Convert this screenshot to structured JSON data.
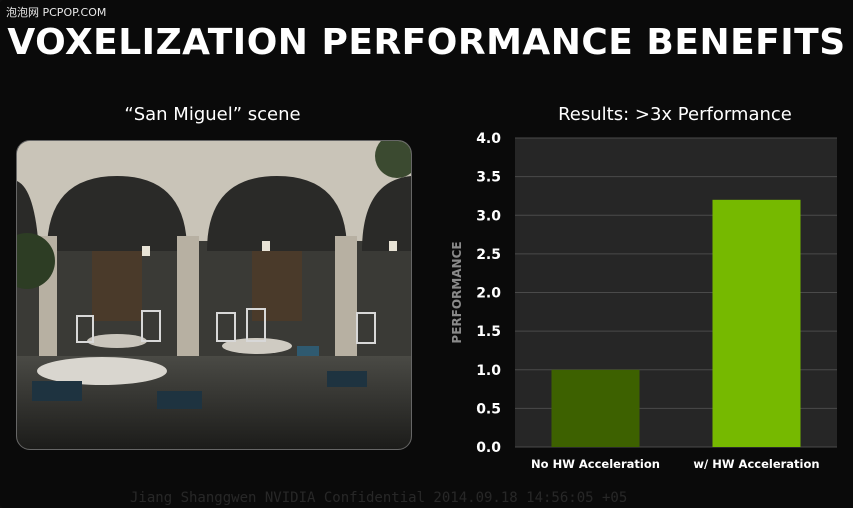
{
  "watermark": "泡泡网 PCPOP.COM",
  "slide_title": "VOXELIZATION PERFORMANCE BENEFITS",
  "left_heading": "“San Miguel” scene",
  "right_heading": "Results: >3x Performance",
  "footer_confidential": "Jiang Shanggwen NVIDIA Confidential 2014.09.18 14:56:05 +05",
  "colors": {
    "bar_no_hw": "#3d6100",
    "bar_hw": "#76b900",
    "plot_bg": "#262626",
    "grid": "#4a4a4a"
  },
  "chart_data": {
    "type": "bar",
    "categories": [
      "No HW Acceleration",
      "w/ HW Acceleration"
    ],
    "values": [
      1.0,
      3.2
    ],
    "title": "Results: >3x Performance",
    "xlabel": "",
    "ylabel": "PERFORMANCE",
    "ylim": [
      0,
      4.0
    ],
    "yticks": [
      "0.0",
      "0.5",
      "1.0",
      "1.5",
      "2.0",
      "2.5",
      "3.0",
      "3.5",
      "4.0"
    ],
    "grid": true,
    "legend": "none"
  }
}
